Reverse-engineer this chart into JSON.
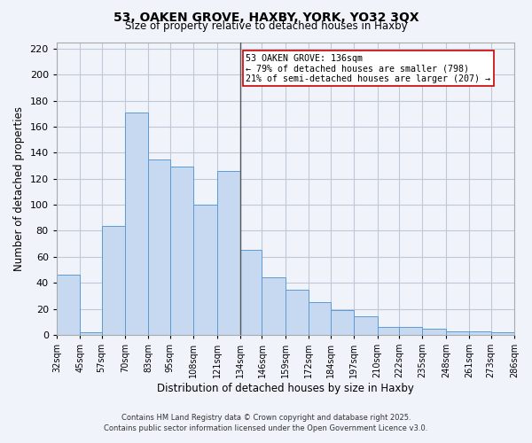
{
  "title": "53, OAKEN GROVE, HAXBY, YORK, YO32 3QX",
  "subtitle": "Size of property relative to detached houses in Haxby",
  "xlabel": "Distribution of detached houses by size in Haxby",
  "ylabel": "Number of detached properties",
  "bin_edges": [
    32,
    45,
    57,
    70,
    83,
    95,
    108,
    121,
    134,
    146,
    159,
    172,
    184,
    197,
    210,
    222,
    235,
    248,
    261,
    273,
    286
  ],
  "bar_heights": [
    46,
    2,
    84,
    171,
    135,
    129,
    100,
    126,
    65,
    44,
    35,
    25,
    19,
    14,
    6,
    6,
    5,
    3,
    3,
    2
  ],
  "bar_color": "#c6d9f0",
  "bar_edgecolor": "#5b9bd5",
  "vline_x": 134,
  "vline_color": "#555555",
  "annotation_line1": "53 OAKEN GROVE: 136sqm",
  "annotation_line2": "← 79% of detached houses are smaller (798)",
  "annotation_line3": "21% of semi-detached houses are larger (207) →",
  "annotation_box_facecolor": "#ffffff",
  "annotation_box_edgecolor": "#cc0000",
  "tick_labels": [
    "32sqm",
    "45sqm",
    "57sqm",
    "70sqm",
    "83sqm",
    "95sqm",
    "108sqm",
    "121sqm",
    "134sqm",
    "146sqm",
    "159sqm",
    "172sqm",
    "184sqm",
    "197sqm",
    "210sqm",
    "222sqm",
    "235sqm",
    "248sqm",
    "261sqm",
    "273sqm",
    "286sqm"
  ],
  "ylim": [
    0,
    225
  ],
  "yticks": [
    0,
    20,
    40,
    60,
    80,
    100,
    120,
    140,
    160,
    180,
    200,
    220
  ],
  "footer1": "Contains HM Land Registry data © Crown copyright and database right 2025.",
  "footer2": "Contains public sector information licensed under the Open Government Licence v3.0.",
  "bg_color": "#f0f4fa",
  "grid_color": "#c0c8d8"
}
